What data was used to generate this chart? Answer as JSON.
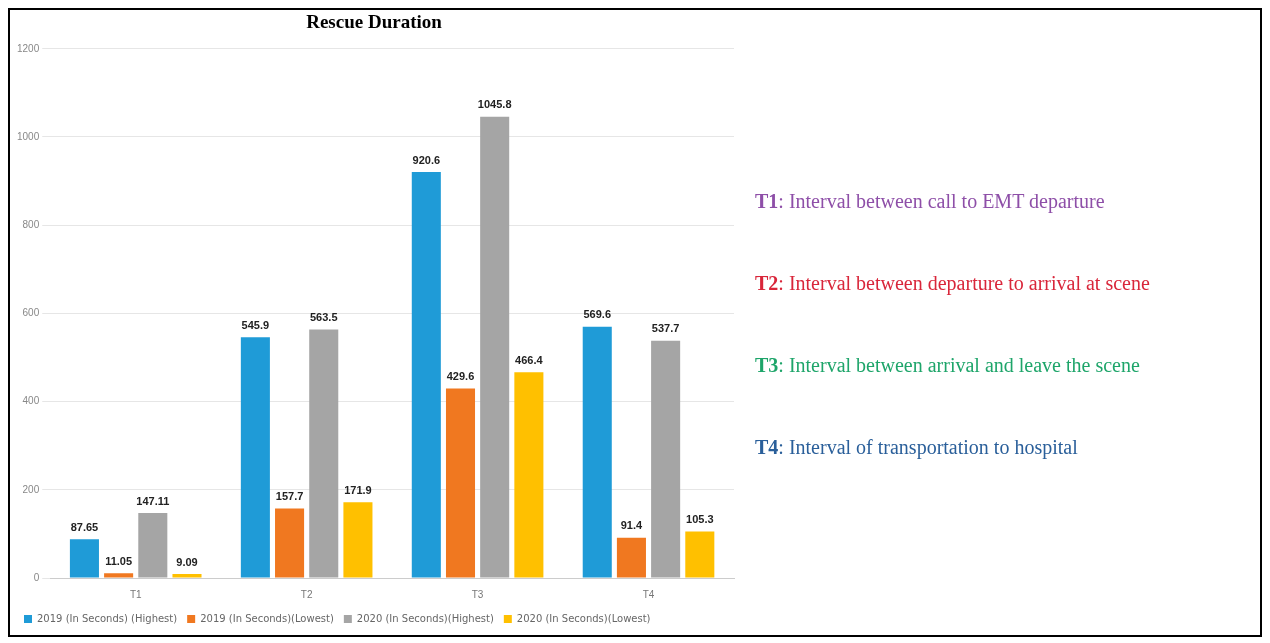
{
  "chart_data": {
    "type": "bar",
    "title": "Rescue Duration",
    "categories": [
      "T1",
      "T2",
      "T3",
      "T4"
    ],
    "series": [
      {
        "name": "2019 (In Seconds) (Highest)",
        "color": "#1f9bd7",
        "values": [
          87.65,
          545.9,
          920.6,
          569.6
        ]
      },
      {
        "name": "2019 (In Seconds)(Lowest)",
        "color": "#f07820",
        "values": [
          11.05,
          157.7,
          429.6,
          91.4
        ]
      },
      {
        "name": "2020 (In Seconds)(Highest)",
        "color": "#a5a5a5",
        "values": [
          147.11,
          563.5,
          1045.8,
          537.7
        ]
      },
      {
        "name": "2020 (In Seconds)(Lowest)",
        "color": "#ffc000",
        "values": [
          9.09,
          171.9,
          466.4,
          105.3
        ]
      }
    ],
    "ylim": [
      0,
      1200
    ],
    "yticks": [
      0,
      200,
      400,
      600,
      800,
      1000,
      1200
    ],
    "grid": "y",
    "legend": "bottom",
    "data_labels": true,
    "annotations": [
      "T1: Interval  between  call to EMT departure",
      "T2: Interval  between  departure to arrival at scene",
      "T3: Interval  between  arrival and leave the scene",
      "T4: Interval  of transportation  to hospital"
    ]
  }
}
